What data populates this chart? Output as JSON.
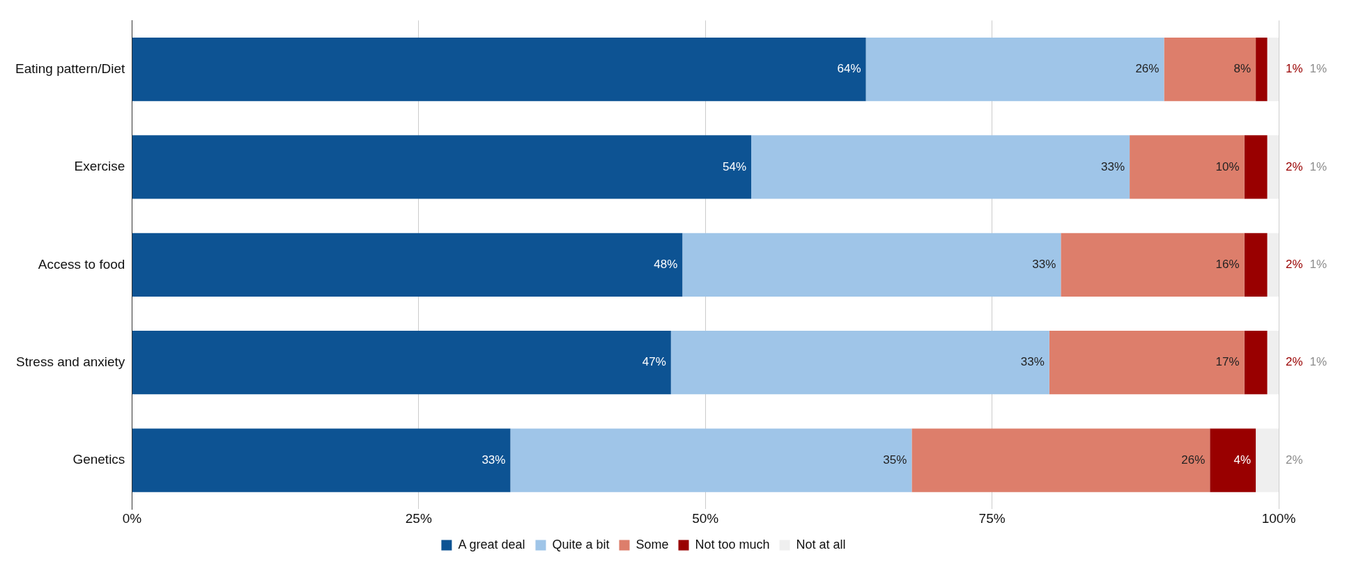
{
  "chart_data": {
    "type": "bar",
    "orientation": "horizontal",
    "stacked": true,
    "categories": [
      "Eating pattern/Diet",
      "Exercise",
      "Access to food",
      "Stress and anxiety",
      "Genetics"
    ],
    "series": [
      {
        "name": "A great deal",
        "color": "#0d5393",
        "values": [
          64,
          54,
          48,
          47,
          33
        ],
        "value_labels": [
          "64%",
          "54%",
          "48%",
          "47%",
          "33%"
        ]
      },
      {
        "name": "Quite a bit",
        "color": "#9fc5e8",
        "values": [
          26,
          33,
          33,
          33,
          35
        ],
        "value_labels": [
          "26%",
          "33%",
          "33%",
          "33%",
          "35%"
        ]
      },
      {
        "name": "Some",
        "color": "#dd7e6b",
        "values": [
          8,
          10,
          16,
          17,
          26
        ],
        "value_labels": [
          "8%",
          "10%",
          "16%",
          "17%",
          "26%"
        ]
      },
      {
        "name": "Not too much",
        "color": "#990000",
        "values": [
          1,
          2,
          2,
          2,
          4
        ],
        "value_labels": [
          "1%",
          "2%",
          "2%",
          "2%",
          "4%"
        ]
      },
      {
        "name": "Not at all",
        "color": "#efefef",
        "values": [
          1,
          1,
          1,
          1,
          2
        ],
        "value_labels": [
          "1%",
          "1%",
          "1%",
          "1%",
          "2%"
        ]
      }
    ],
    "xlim": [
      0,
      100
    ],
    "xticks": [
      {
        "value": 0,
        "label": "0%"
      },
      {
        "value": 25,
        "label": "25%"
      },
      {
        "value": 50,
        "label": "50%"
      },
      {
        "value": 75,
        "label": "75%"
      },
      {
        "value": 100,
        "label": "100%"
      }
    ],
    "grid": "x",
    "legend": "bottom"
  }
}
